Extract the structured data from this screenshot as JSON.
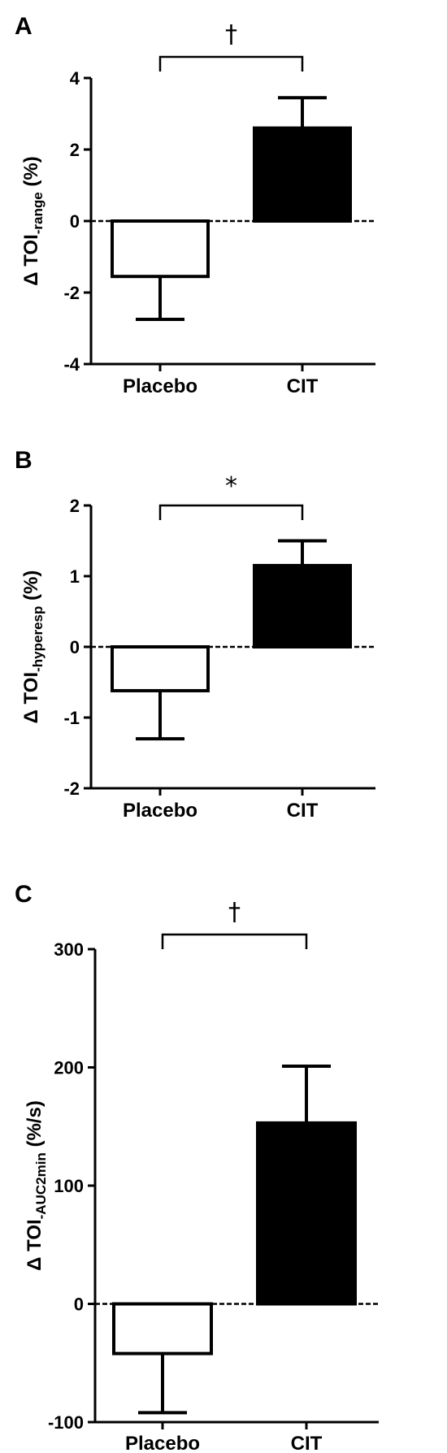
{
  "chart_data": [
    {
      "type": "bar",
      "panel": "A",
      "categories": [
        "Placebo",
        "CIT"
      ],
      "values": [
        -1.55,
        2.6
      ],
      "errors": [
        1.2,
        0.85
      ],
      "error_direction": "away_from_zero",
      "bar_colors": [
        "#ffffff",
        "#000000"
      ],
      "ylabel": {
        "prefix": "Δ TOI",
        "sub": "-range",
        "suffix": " (%)"
      },
      "ylim": [
        -4,
        4
      ],
      "yticks": [
        -4,
        -2,
        0,
        2,
        4
      ],
      "ytick_labels": [
        "-4",
        "-2",
        "0",
        "2",
        "4"
      ],
      "zero_line": "dashed",
      "significance": "†"
    },
    {
      "type": "bar",
      "panel": "B",
      "categories": [
        "Placebo",
        "CIT"
      ],
      "values": [
        -0.62,
        1.15
      ],
      "errors": [
        0.68,
        0.35
      ],
      "error_direction": "away_from_zero",
      "bar_colors": [
        "#ffffff",
        "#000000"
      ],
      "ylabel": {
        "prefix": "Δ TOI",
        "sub": "-hyperesp",
        "suffix": " (%)"
      },
      "ylim": [
        -2,
        2
      ],
      "yticks": [
        -2,
        -1,
        0,
        1,
        2
      ],
      "ytick_labels": [
        "-2",
        "-1",
        "0",
        "1",
        "2"
      ],
      "zero_line": "dashed",
      "significance": "*"
    },
    {
      "type": "bar",
      "panel": "C",
      "categories": [
        "Placebo",
        "CIT"
      ],
      "values": [
        -42,
        153
      ],
      "errors": [
        50,
        48
      ],
      "error_direction": "away_from_zero",
      "bar_colors": [
        "#ffffff",
        "#000000"
      ],
      "ylabel": {
        "prefix": "Δ TOI",
        "sub": "-AUC2min",
        "suffix": " (%/s)"
      },
      "ylim": [
        -100,
        300
      ],
      "yticks": [
        -100,
        0,
        100,
        200,
        300
      ],
      "ytick_labels": [
        "-100",
        "0",
        "100",
        "200",
        "300"
      ],
      "zero_line": "dashed",
      "significance": "†"
    }
  ]
}
